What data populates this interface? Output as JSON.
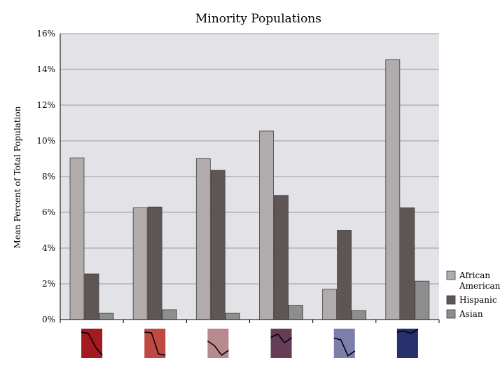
{
  "chart_data": {
    "type": "bar",
    "title": "Minority Populations",
    "xlabel": "",
    "ylabel": "Mean Percent of Total Population",
    "ylim": [
      0,
      16
    ],
    "yticks": [
      "0%",
      "2%",
      "4%",
      "6%",
      "8%",
      "10%",
      "12%",
      "14%",
      "16%"
    ],
    "grid": true,
    "legend_position": "right",
    "categories": [
      "",
      "",
      "",
      "",
      "",
      ""
    ],
    "category_swatch_colors": [
      "#a31a20",
      "#bf4a44",
      "#b88a8f",
      "#663d58",
      "#7d7eab",
      "#27306b"
    ],
    "category_sparklines": [
      [
        0.12,
        0.16,
        0.62,
        0.9
      ],
      [
        0.12,
        0.14,
        0.86,
        0.9
      ],
      [
        0.42,
        0.58,
        0.9,
        0.74
      ],
      [
        0.3,
        0.18,
        0.48,
        0.3
      ],
      [
        0.32,
        0.38,
        0.92,
        0.76
      ],
      [
        0.12,
        0.08,
        0.16,
        0.02
      ]
    ],
    "series": [
      {
        "name": "African American",
        "color": "#b1acab",
        "values": [
          9.05,
          6.25,
          9.0,
          10.55,
          1.7,
          14.55
        ]
      },
      {
        "name": "Hispanic",
        "color": "#5e5655",
        "values": [
          2.55,
          6.3,
          8.35,
          6.95,
          5.0,
          6.25
        ]
      },
      {
        "name": "Asian",
        "color": "#8f8e8e",
        "values": [
          0.35,
          0.55,
          0.35,
          0.8,
          0.5,
          2.15
        ]
      }
    ],
    "legend": {
      "items": [
        {
          "lines": [
            "African",
            "American"
          ],
          "color": "#b1acab"
        },
        {
          "lines": [
            "Hispanic"
          ],
          "color": "#5e5655"
        },
        {
          "lines": [
            "Asian"
          ],
          "color": "#8f8e8e"
        }
      ]
    }
  }
}
